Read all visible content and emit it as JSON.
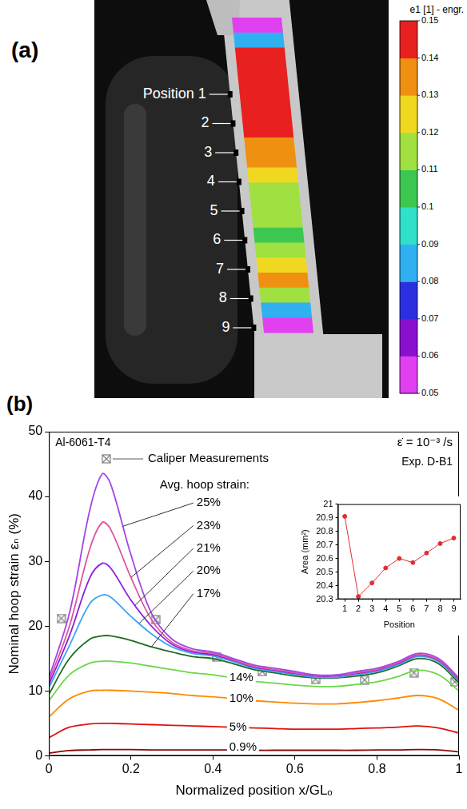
{
  "panel_a": {
    "label": "(a)",
    "positions": [
      "Position 1",
      "2",
      "3",
      "4",
      "5",
      "6",
      "7",
      "8",
      "9"
    ],
    "strain_map": {
      "values": [
        0.055,
        0.08,
        0.148,
        0.15,
        0.15,
        0.148,
        0.145,
        0.14,
        0.135,
        0.13,
        0.125,
        0.115,
        0.112,
        0.11,
        0.105,
        0.11,
        0.12,
        0.135,
        0.11,
        0.08,
        0.058
      ]
    },
    "colorbar": {
      "title": "e1 [1] - engr.",
      "range": [
        0.05,
        0.15
      ],
      "ticks": [
        0.05,
        0.06,
        0.07,
        0.08,
        0.09,
        0.1,
        0.11,
        0.12,
        0.13,
        0.14,
        0.15
      ],
      "colors": [
        "#e040f0",
        "#8a10d0",
        "#2a30e0",
        "#30b0f0",
        "#30e0c8",
        "#3cc850",
        "#a0e040",
        "#f0d820",
        "#f09010",
        "#e82020"
      ]
    }
  },
  "panel_b": {
    "label": "(b)"
  },
  "chart_data": [
    {
      "type": "line",
      "x_label": "Normalized position x/GLₒ",
      "y_label": "Nominal hoop strain εₙ (%)",
      "annotations": [
        "Al-6061-T4",
        "ε̇ = 10⁻³ /s",
        "Exp. D-B1",
        "Avg. hoop strain:"
      ],
      "xlim": [
        0,
        1
      ],
      "xticks": [
        0,
        0.2,
        0.4,
        0.6,
        0.8,
        1
      ],
      "ylim": [
        0,
        50
      ],
      "yticks": [
        0,
        10,
        20,
        30,
        40,
        50
      ],
      "grid": false,
      "legend": "top-left",
      "x": [
        0,
        0.05,
        0.1,
        0.13,
        0.15,
        0.2,
        0.25,
        0.3,
        0.35,
        0.4,
        0.45,
        0.5,
        0.55,
        0.6,
        0.65,
        0.7,
        0.75,
        0.8,
        0.85,
        0.9,
        0.95,
        1
      ],
      "series": [
        {
          "name": "25%",
          "color": "#a347e6",
          "values": [
            12,
            22,
            38,
            43.5,
            42,
            31,
            22,
            18,
            16.5,
            16,
            15,
            14,
            13.5,
            13,
            12.5,
            12.5,
            13,
            13.5,
            14.5,
            15.8,
            15,
            12
          ]
        },
        {
          "name": "23%",
          "color": "#e2549c",
          "values": [
            11.5,
            20,
            32,
            36,
            35,
            27.5,
            21,
            17.5,
            16.2,
            15.8,
            14.8,
            13.8,
            13.3,
            12.8,
            12.4,
            12.4,
            12.8,
            13.3,
            14.3,
            15.6,
            14.8,
            11.8
          ]
        },
        {
          "name": "21%",
          "color": "#8b1fe0",
          "values": [
            11,
            18.5,
            27.5,
            29.7,
            29,
            24,
            20,
            17.2,
            16,
            15.6,
            14.7,
            13.7,
            13.2,
            12.7,
            12.3,
            12.3,
            12.7,
            13.2,
            14.2,
            15.5,
            14.7,
            11.7
          ]
        },
        {
          "name": "20%",
          "color": "#3da5f2",
          "values": [
            10.5,
            17,
            23.5,
            24.8,
            24.5,
            21.5,
            18.8,
            16.8,
            15.8,
            15.4,
            14.5,
            13.5,
            13,
            12.5,
            12.1,
            12.1,
            12.5,
            13,
            14,
            15.3,
            14.5,
            11.5
          ]
        },
        {
          "name": "17%",
          "color": "#1e6b1e",
          "values": [
            9.5,
            15,
            18,
            18.5,
            18.5,
            17.8,
            16.8,
            16,
            15.3,
            15,
            14.2,
            13.3,
            12.8,
            12.3,
            12,
            12,
            12.3,
            12.8,
            13.8,
            15,
            14.2,
            11.2
          ]
        },
        {
          "name": "14%",
          "color": "#6bd84a",
          "values": [
            8.5,
            12.5,
            14.3,
            14.6,
            14.6,
            14.3,
            13.8,
            13.3,
            12.8,
            12.5,
            12,
            11.5,
            11.2,
            10.9,
            10.7,
            10.7,
            11,
            11.4,
            12.2,
            13.2,
            12.5,
            10
          ]
        },
        {
          "name": "10%",
          "color": "#ff8a00",
          "values": [
            6,
            8.8,
            10,
            10.1,
            10.1,
            10,
            9.8,
            9.6,
            9.3,
            9.1,
            8.8,
            8.5,
            8.3,
            8.1,
            8,
            8,
            8.2,
            8.5,
            8.9,
            9.3,
            8.8,
            7
          ]
        },
        {
          "name": "5%",
          "color": "#e01010",
          "values": [
            2.8,
            4.4,
            4.9,
            5,
            5,
            4.9,
            4.8,
            4.7,
            4.6,
            4.5,
            4.4,
            4.3,
            4.2,
            4.1,
            4.1,
            4.1,
            4.2,
            4.3,
            4.4,
            4.6,
            4.3,
            3.5
          ]
        },
        {
          "name": "0.9%",
          "color": "#8b0a0a",
          "values": [
            0.4,
            0.8,
            0.9,
            0.95,
            0.95,
            0.95,
            0.9,
            0.9,
            0.9,
            0.9,
            0.9,
            0.85,
            0.85,
            0.85,
            0.85,
            0.85,
            0.85,
            0.9,
            0.9,
            0.95,
            0.9,
            0.6
          ]
        },
        {
          "name": "Caliper Measurements",
          "type": "scatter",
          "marker": "boxed-x",
          "color": "#7f7f7f",
          "x": [
            0.03,
            0.26,
            0.41,
            0.52,
            0.65,
            0.77,
            0.89,
            0.99
          ],
          "values": [
            21.2,
            21,
            15.2,
            13,
            11.8,
            11.7,
            12.8,
            11.4
          ]
        }
      ]
    },
    {
      "type": "line",
      "x_label": "Position",
      "y_label": "Area (mm²)",
      "xlim": [
        0.5,
        9.5
      ],
      "xticks": [
        1,
        2,
        3,
        4,
        5,
        6,
        7,
        8,
        9
      ],
      "ylim": [
        20.3,
        21
      ],
      "yticks": [
        20.3,
        20.4,
        20.5,
        20.6,
        20.7,
        20.8,
        20.9,
        21
      ],
      "grid": false,
      "color": "#e03030",
      "marker": "circle",
      "x": [
        1,
        2,
        3,
        4,
        5,
        6,
        7,
        8,
        9
      ],
      "values": [
        20.91,
        20.32,
        20.42,
        20.53,
        20.6,
        20.57,
        20.64,
        20.71,
        20.75
      ]
    }
  ]
}
